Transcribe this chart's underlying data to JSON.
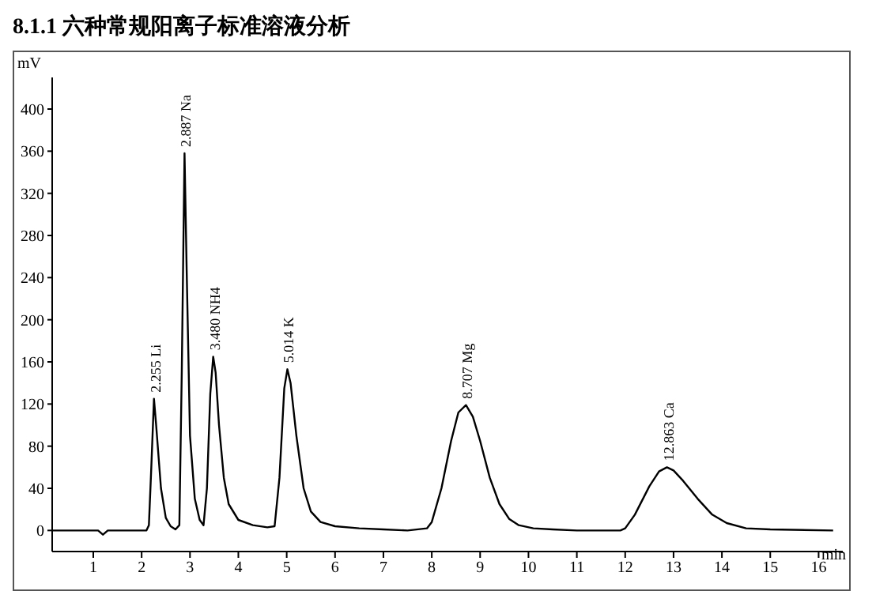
{
  "chart_data": {
    "type": "line",
    "title": "8.1.1 六种常规阳离子标准溶液分析",
    "xlabel": "min",
    "ylabel": "mV",
    "xlim": [
      0.15,
      16.5
    ],
    "ylim": [
      -20,
      430
    ],
    "xticks": [
      1,
      2,
      3,
      4,
      5,
      6,
      7,
      8,
      9,
      10,
      11,
      12,
      13,
      14,
      15,
      16
    ],
    "yticks": [
      0,
      40,
      80,
      120,
      160,
      200,
      240,
      280,
      320,
      360,
      400
    ],
    "grid": false,
    "legend": false,
    "series": [
      {
        "color": "#000000",
        "x": [
          0.15,
          1.1,
          1.2,
          1.3,
          2.1,
          2.15,
          2.2,
          2.255,
          2.3,
          2.4,
          2.5,
          2.6,
          2.7,
          2.78,
          2.83,
          2.887,
          2.93,
          3.0,
          3.1,
          3.2,
          3.28,
          3.35,
          3.42,
          3.48,
          3.53,
          3.6,
          3.7,
          3.8,
          4.0,
          4.3,
          4.6,
          4.75,
          4.85,
          4.95,
          5.014,
          5.08,
          5.2,
          5.35,
          5.5,
          5.7,
          6.0,
          6.5,
          7.0,
          7.5,
          7.9,
          8.0,
          8.2,
          8.4,
          8.55,
          8.707,
          8.85,
          9.0,
          9.2,
          9.4,
          9.6,
          9.8,
          10.1,
          10.5,
          11,
          11.9,
          12.0,
          12.2,
          12.5,
          12.7,
          12.863,
          13.0,
          13.2,
          13.5,
          13.8,
          14.1,
          14.5,
          15,
          16.3
        ],
        "values": [
          0,
          0,
          -4,
          0,
          0,
          5,
          60,
          125,
          100,
          40,
          12,
          4,
          1,
          5,
          150,
          358,
          250,
          90,
          30,
          10,
          5,
          40,
          130,
          165,
          150,
          100,
          50,
          25,
          10,
          5,
          3,
          4,
          50,
          135,
          153,
          140,
          90,
          40,
          18,
          8,
          4,
          2,
          1,
          0,
          2,
          8,
          40,
          85,
          112,
          119,
          108,
          85,
          50,
          25,
          11,
          5,
          2,
          1,
          0,
          0,
          2,
          15,
          42,
          56,
          60,
          57,
          47,
          30,
          15,
          7,
          2,
          1,
          0
        ]
      }
    ],
    "annotations": [
      {
        "text": "2.255 Li",
        "x": 2.255,
        "y": 125
      },
      {
        "text": "2.887 Na",
        "x": 2.887,
        "y": 358
      },
      {
        "text": "3.480 NH4",
        "x": 3.48,
        "y": 165
      },
      {
        "text": "5.014  K",
        "x": 5.014,
        "y": 153
      },
      {
        "text": "8.707 Mg",
        "x": 8.707,
        "y": 119
      },
      {
        "text": "12.863 Ca",
        "x": 12.863,
        "y": 60
      }
    ]
  }
}
